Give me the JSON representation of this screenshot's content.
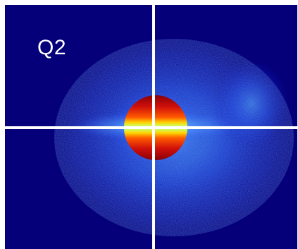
{
  "image": {
    "quadrant_label": "Q2",
    "colors": {
      "background": "#05007a",
      "crosshair": "#ffffff",
      "core_red": "#c0000a",
      "core_yellow": "#ffd400",
      "halo_blue": "#2a7bff"
    }
  }
}
